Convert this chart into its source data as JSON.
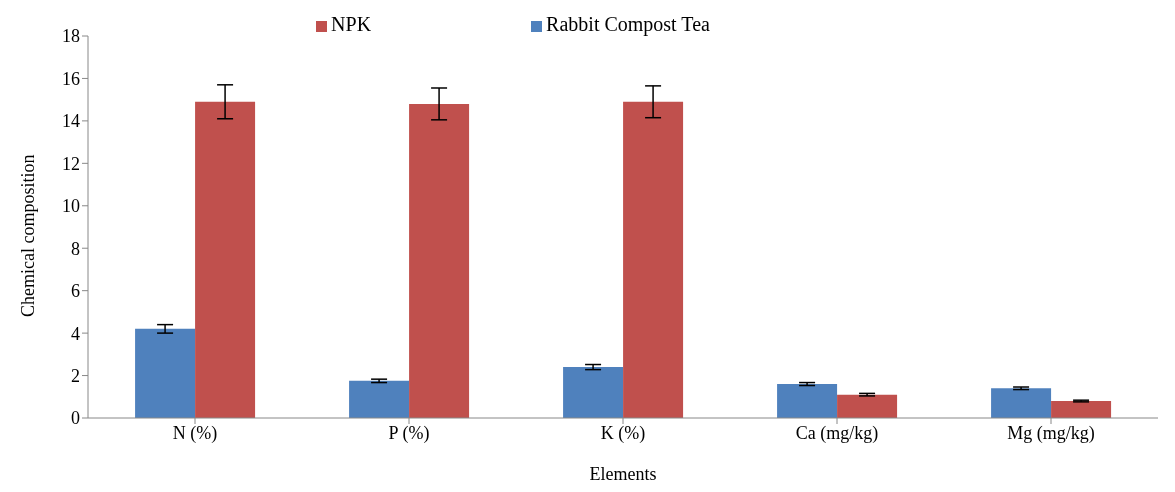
{
  "chart_data": {
    "type": "bar",
    "xlabel": "Elements",
    "ylabel": "Chemical composition",
    "categories": [
      "N (%)",
      "P (%)",
      "K (%)",
      "Ca (mg/kg)",
      "Mg (mg/kg)"
    ],
    "series": [
      {
        "name": "Rabbit Compost Tea",
        "color": "#4f81bd",
        "values": [
          4.2,
          1.75,
          2.4,
          1.6,
          1.4
        ],
        "errors": [
          0.2,
          0.08,
          0.12,
          0.07,
          0.06
        ]
      },
      {
        "name": "NPK",
        "color": "#c0504d",
        "values": [
          14.9,
          14.8,
          14.9,
          1.1,
          0.8
        ],
        "errors": [
          0.8,
          0.75,
          0.75,
          0.06,
          0.04
        ]
      }
    ],
    "ylim": [
      0,
      18
    ],
    "yticks": [
      0,
      2,
      4,
      6,
      8,
      10,
      12,
      14,
      16,
      18
    ],
    "grid": false,
    "legend": "top"
  }
}
